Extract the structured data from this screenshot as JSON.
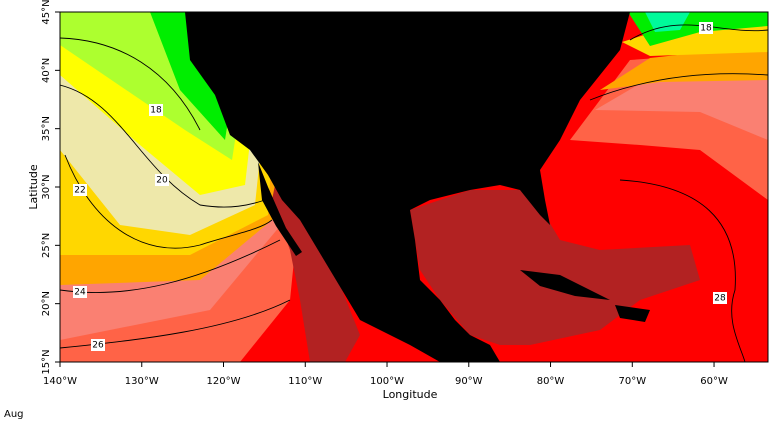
{
  "map": {
    "x_axis": {
      "title": "Longitude",
      "lim": [
        -140,
        -53.4
      ],
      "ticks": [
        {
          "value": -140,
          "label": "140°W"
        },
        {
          "value": -130,
          "label": "130°W"
        },
        {
          "value": -120,
          "label": "120°W"
        },
        {
          "value": -110,
          "label": "110°W"
        },
        {
          "value": -100,
          "label": "100°W"
        },
        {
          "value": -90,
          "label": "90°W"
        },
        {
          "value": -80,
          "label": "80°W"
        },
        {
          "value": -70,
          "label": "70°W"
        },
        {
          "value": -60,
          "label": "60°W"
        }
      ]
    },
    "y_axis": {
      "title": "Latitude",
      "lim": [
        15,
        45
      ],
      "ticks": [
        {
          "value": 15,
          "label": "15°N"
        },
        {
          "value": 20,
          "label": "20°N"
        },
        {
          "value": 25,
          "label": "25°N"
        },
        {
          "value": 30,
          "label": "30°N"
        },
        {
          "value": 35,
          "label": "35°N"
        },
        {
          "value": 40,
          "label": "40°N"
        },
        {
          "value": 45,
          "label": "45°N"
        }
      ]
    },
    "contour_labels": [
      18,
      20,
      22,
      24,
      26,
      28,
      18
    ]
  },
  "footer": {
    "period": "Aug"
  }
}
